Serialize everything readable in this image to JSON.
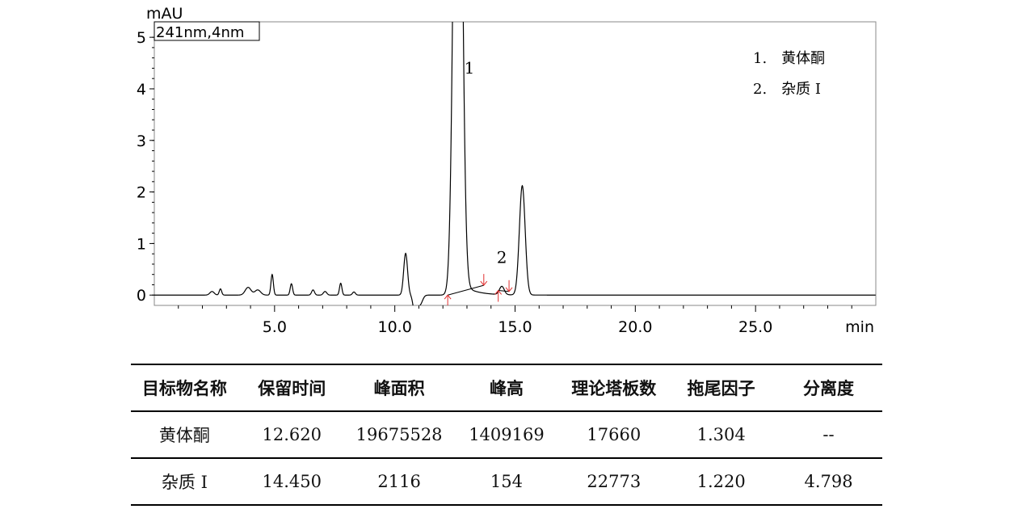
{
  "chart_data": {
    "type": "line",
    "ylabel": "mAU",
    "xlabel": "min",
    "detector_label": "241nm,4nm",
    "xlim": [
      0,
      30
    ],
    "ylim": [
      -0.2,
      5.3
    ],
    "x_ticks": [
      5.0,
      10.0,
      15.0,
      20.0,
      25.0
    ],
    "x_tick_labels": [
      "5.0",
      "10.0",
      "15.0",
      "20.0",
      "25.0"
    ],
    "y_ticks": [
      0,
      1,
      2,
      3,
      4,
      5
    ],
    "y_tick_labels": [
      "0",
      "1",
      "2",
      "3",
      "4",
      "5"
    ],
    "legend": [
      "1.　黄体酮",
      "2.　杂质 I"
    ],
    "legend_position": "top-right",
    "peak_labels": [
      {
        "label": "1",
        "x": 13.1,
        "y": 4.3
      },
      {
        "label": "2",
        "x": 14.45,
        "y": 0.62
      }
    ],
    "baseline_level": 0.0,
    "peaks": [
      {
        "rt": 2.4,
        "height": 0.07,
        "width": 0.09
      },
      {
        "rt": 2.75,
        "height": 0.12,
        "width": 0.05
      },
      {
        "rt": 3.9,
        "height": 0.15,
        "width": 0.12
      },
      {
        "rt": 4.3,
        "height": 0.1,
        "width": 0.12
      },
      {
        "rt": 4.9,
        "height": 0.4,
        "width": 0.05
      },
      {
        "rt": 5.7,
        "height": 0.22,
        "width": 0.05
      },
      {
        "rt": 6.6,
        "height": 0.1,
        "width": 0.06
      },
      {
        "rt": 7.1,
        "height": 0.07,
        "width": 0.07
      },
      {
        "rt": 7.75,
        "height": 0.23,
        "width": 0.05
      },
      {
        "rt": 8.3,
        "height": 0.06,
        "width": 0.06
      },
      {
        "rt": 10.45,
        "height": 0.81,
        "width": 0.08
      },
      {
        "rt": 10.85,
        "height": -0.4,
        "width": 0.08
      },
      {
        "rt": 11.05,
        "height": -0.18,
        "width": 0.1
      },
      {
        "rt": 12.62,
        "height": 14.09,
        "width": 0.16
      },
      {
        "rt": 14.45,
        "height": 0.16,
        "width": 0.1
      },
      {
        "rt": 15.3,
        "height": 2.12,
        "width": 0.12
      }
    ],
    "integration_lines": [
      {
        "x1": 12.2,
        "y1": 0.0,
        "x2": 13.7,
        "y2": 0.19
      },
      {
        "x1": 14.3,
        "y1": 0.09,
        "x2": 14.75,
        "y2": 0.07
      }
    ],
    "integration_markers": [
      {
        "x": 12.2,
        "y": 0.0,
        "dir": "up"
      },
      {
        "x": 13.7,
        "y": 0.19,
        "dir": "down"
      },
      {
        "x": 14.3,
        "y": 0.09,
        "dir": "up"
      },
      {
        "x": 14.75,
        "y": 0.07,
        "dir": "down"
      }
    ]
  },
  "table": {
    "headers": [
      "目标物名称",
      "保留时间",
      "峰面积",
      "峰高",
      "理论塔板数",
      "拖尾因子",
      "分离度"
    ],
    "rows": [
      [
        "黄体酮",
        "12.620",
        "19675528",
        "1409169",
        "17660",
        "1.304",
        "--"
      ],
      [
        "杂质 I",
        "14.450",
        "2116",
        "154",
        "22773",
        "1.220",
        "4.798"
      ]
    ]
  }
}
